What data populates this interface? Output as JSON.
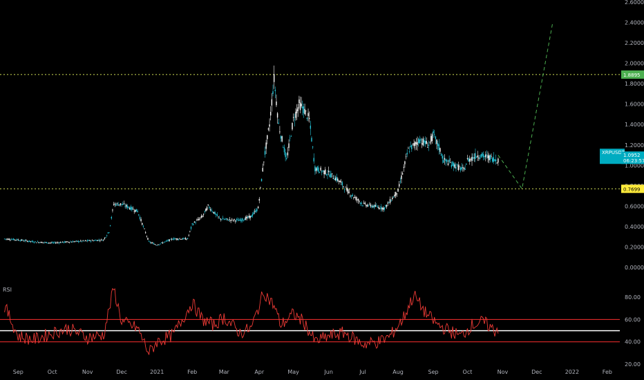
{
  "chart_data": {
    "type": "candlestick",
    "symbol": "XRPUSDT",
    "last_price": "1.0952",
    "countdown": "06:23:57",
    "colors": {
      "up": "#26c6da",
      "down": "#ffffff",
      "rsi": "#ef3b36",
      "level_line": "#d4e157",
      "projection": "#4caf50",
      "rsi_band": "#ff3030",
      "rsi_mid": "#ffffff"
    },
    "price_axis": {
      "min": 0,
      "max": 2.6,
      "ticks": [
        "0.0000",
        "0.2000",
        "0.4000",
        "0.6000",
        "0.8000",
        "1.0000",
        "1.2000",
        "1.4000",
        "1.6000",
        "1.8000",
        "2.0000",
        "2.2000",
        "2.4000",
        "2.6000"
      ]
    },
    "x_axis": {
      "labels": [
        "Sep",
        "Oct",
        "Nov",
        "Dec",
        "2021",
        "Feb",
        "Mar",
        "Apr",
        "May",
        "Jun",
        "Jul",
        "Aug",
        "Sep",
        "Oct",
        "Nov",
        "Dec",
        "2022",
        "Feb"
      ]
    },
    "levels": [
      {
        "price": 1.8895,
        "label": "1.8895",
        "tag_color": "#4caf50",
        "text_color": "#ffffff"
      },
      {
        "price": 0.7699,
        "label": "0.7699",
        "tag_color": "#ffeb3b",
        "text_color": "#000000"
      }
    ],
    "price_series": {
      "dates": [
        "2020-08-20",
        "2020-09-01",
        "2020-09-15",
        "2020-10-01",
        "2020-10-15",
        "2020-11-01",
        "2020-11-15",
        "2020-11-20",
        "2020-11-24",
        "2020-12-01",
        "2020-12-15",
        "2020-12-25",
        "2021-01-01",
        "2021-01-15",
        "2021-01-28",
        "2021-02-01",
        "2021-02-10",
        "2021-02-15",
        "2021-02-25",
        "2021-03-01",
        "2021-03-15",
        "2021-03-25",
        "2021-03-31",
        "2021-04-05",
        "2021-04-10",
        "2021-04-14",
        "2021-04-18",
        "2021-04-25",
        "2021-05-01",
        "2021-05-06",
        "2021-05-10",
        "2021-05-15",
        "2021-05-20",
        "2021-05-25",
        "2021-06-01",
        "2021-06-10",
        "2021-06-20",
        "2021-06-28",
        "2021-07-01",
        "2021-07-10",
        "2021-07-20",
        "2021-07-25",
        "2021-08-01",
        "2021-08-10",
        "2021-08-20",
        "2021-08-28",
        "2021-09-01",
        "2021-09-07",
        "2021-09-10",
        "2021-09-20",
        "2021-09-28",
        "2021-10-01",
        "2021-10-10",
        "2021-10-20",
        "2021-10-28"
      ],
      "values": [
        0.28,
        0.27,
        0.25,
        0.24,
        0.25,
        0.26,
        0.27,
        0.35,
        0.62,
        0.62,
        0.55,
        0.25,
        0.22,
        0.28,
        0.28,
        0.42,
        0.5,
        0.6,
        0.48,
        0.47,
        0.46,
        0.5,
        0.58,
        1.05,
        1.4,
        1.85,
        1.4,
        1.05,
        1.45,
        1.6,
        1.55,
        1.45,
        0.97,
        0.95,
        0.92,
        0.85,
        0.72,
        0.65,
        0.62,
        0.6,
        0.58,
        0.65,
        0.75,
        1.15,
        1.25,
        1.2,
        1.3,
        1.15,
        1.05,
        1.0,
        0.95,
        1.05,
        1.1,
        1.08,
        1.05
      ]
    },
    "projection": [
      {
        "date": "2021-10-28",
        "value": 1.1
      },
      {
        "date": "2021-11-18",
        "value": 0.77
      },
      {
        "date": "2021-12-15",
        "value": 2.4
      }
    ],
    "rsi": {
      "label": "RSI",
      "axis": {
        "min": 20,
        "max": 90,
        "ticks": [
          "20.00",
          "40.00",
          "60.00",
          "80.00"
        ]
      },
      "bands": [
        40,
        50,
        60
      ],
      "dates": [
        "2020-08-20",
        "2020-09-01",
        "2020-09-15",
        "2020-10-01",
        "2020-10-15",
        "2020-11-01",
        "2020-11-15",
        "2020-11-24",
        "2020-12-01",
        "2020-12-15",
        "2020-12-25",
        "2021-01-01",
        "2021-01-15",
        "2021-02-01",
        "2021-02-10",
        "2021-02-20",
        "2021-03-01",
        "2021-03-15",
        "2021-03-25",
        "2021-04-05",
        "2021-04-14",
        "2021-04-20",
        "2021-05-01",
        "2021-05-10",
        "2021-05-20",
        "2021-06-01",
        "2021-06-15",
        "2021-07-01",
        "2021-07-15",
        "2021-07-25",
        "2021-08-05",
        "2021-08-15",
        "2021-08-25",
        "2021-09-05",
        "2021-09-15",
        "2021-09-25",
        "2021-10-05",
        "2021-10-15",
        "2021-10-25",
        "2021-10-28"
      ],
      "values": [
        72,
        45,
        42,
        48,
        52,
        44,
        46,
        88,
        58,
        52,
        30,
        40,
        46,
        75,
        60,
        55,
        62,
        48,
        52,
        85,
        72,
        55,
        65,
        58,
        40,
        45,
        48,
        38,
        40,
        45,
        60,
        82,
        66,
        55,
        50,
        45,
        55,
        58,
        50,
        52
      ]
    }
  }
}
